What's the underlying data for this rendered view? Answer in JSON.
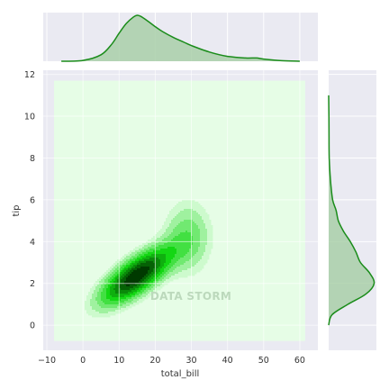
{
  "chart_data": {
    "type": "joint-kde",
    "xlabel": "total_bill",
    "ylabel": "tip",
    "xlim": [
      -11,
      65
    ],
    "ylim": [
      -1.2,
      12.2
    ],
    "x_ticks": [
      -10,
      0,
      10,
      20,
      30,
      40,
      50,
      60
    ],
    "y_ticks": [
      0,
      2,
      4,
      6,
      8,
      10,
      12
    ],
    "grid": true,
    "colors": {
      "background": "#eaeaf2",
      "kde_floor": "#e6fde6",
      "kde_dark": "#003a00",
      "marginal_line": "#1a8c1a",
      "marginal_fill": "#a9cfa9",
      "grid": "#ffffff"
    },
    "joint_kde": {
      "center": [
        14.8,
        2.35
      ],
      "spread": [
        6.5,
        0.9
      ],
      "correlation": 0.72,
      "secondary_center": [
        29,
        4.2
      ],
      "secondary_spread": [
        4.5,
        1.2
      ],
      "secondary_weight": 0.28,
      "levels": 9
    },
    "marginal_x": {
      "x": [
        -6,
        0,
        5,
        8,
        10,
        12,
        14,
        15,
        16,
        18,
        20,
        22,
        25,
        28,
        30,
        35,
        40,
        45,
        48,
        50,
        55,
        60
      ],
      "density": [
        0.0,
        0.0015,
        0.012,
        0.032,
        0.052,
        0.07,
        0.082,
        0.085,
        0.083,
        0.074,
        0.064,
        0.055,
        0.044,
        0.035,
        0.029,
        0.017,
        0.009,
        0.006,
        0.006,
        0.004,
        0.001,
        0.0
      ]
    },
    "marginal_y": {
      "y": [
        0,
        0.5,
        1.0,
        1.5,
        2.0,
        2.5,
        3.0,
        3.5,
        4.0,
        4.5,
        5.0,
        5.5,
        6.0,
        7.0,
        8.0,
        9.0,
        10.0,
        11.0
      ],
      "density": [
        0.0,
        0.03,
        0.17,
        0.33,
        0.4,
        0.36,
        0.28,
        0.24,
        0.19,
        0.13,
        0.085,
        0.065,
        0.035,
        0.015,
        0.005,
        0.003,
        0.002,
        0.0
      ]
    },
    "watermark": "DATA STORM"
  }
}
